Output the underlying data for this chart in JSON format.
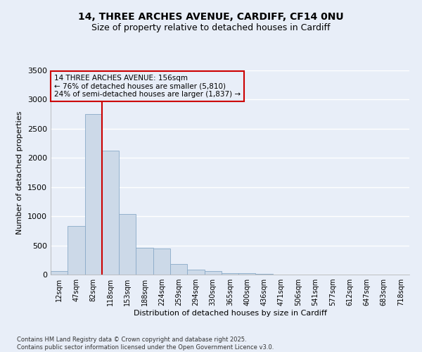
{
  "title_line1": "14, THREE ARCHES AVENUE, CARDIFF, CF14 0NU",
  "title_line2": "Size of property relative to detached houses in Cardiff",
  "xlabel": "Distribution of detached houses by size in Cardiff",
  "ylabel": "Number of detached properties",
  "categories": [
    "12sqm",
    "47sqm",
    "82sqm",
    "118sqm",
    "153sqm",
    "188sqm",
    "224sqm",
    "259sqm",
    "294sqm",
    "330sqm",
    "365sqm",
    "400sqm",
    "436sqm",
    "471sqm",
    "506sqm",
    "541sqm",
    "577sqm",
    "612sqm",
    "647sqm",
    "683sqm",
    "718sqm"
  ],
  "values": [
    55,
    830,
    2750,
    2120,
    1040,
    455,
    450,
    185,
    85,
    60,
    30,
    20,
    10,
    5,
    5,
    3,
    2,
    1,
    1,
    1,
    0
  ],
  "bar_color": "#ccd9e8",
  "bar_edge_color": "#8aaac8",
  "vline_color": "#cc0000",
  "vline_x": 2.5,
  "annotation_title": "14 THREE ARCHES AVENUE: 156sqm",
  "annotation_line2": "← 76% of detached houses are smaller (5,810)",
  "annotation_line3": "24% of semi-detached houses are larger (1,837) →",
  "annotation_box_color": "#cc0000",
  "ylim": [
    0,
    3500
  ],
  "yticks": [
    0,
    500,
    1000,
    1500,
    2000,
    2500,
    3000,
    3500
  ],
  "footer_line1": "Contains HM Land Registry data © Crown copyright and database right 2025.",
  "footer_line2": "Contains public sector information licensed under the Open Government Licence v3.0.",
  "bg_color": "#e8eef8",
  "grid_color": "#ffffff",
  "title_fontsize": 10,
  "subtitle_fontsize": 9,
  "axis_label_fontsize": 8,
  "tick_fontsize": 7,
  "footer_fontsize": 6,
  "annotation_fontsize": 7.5
}
